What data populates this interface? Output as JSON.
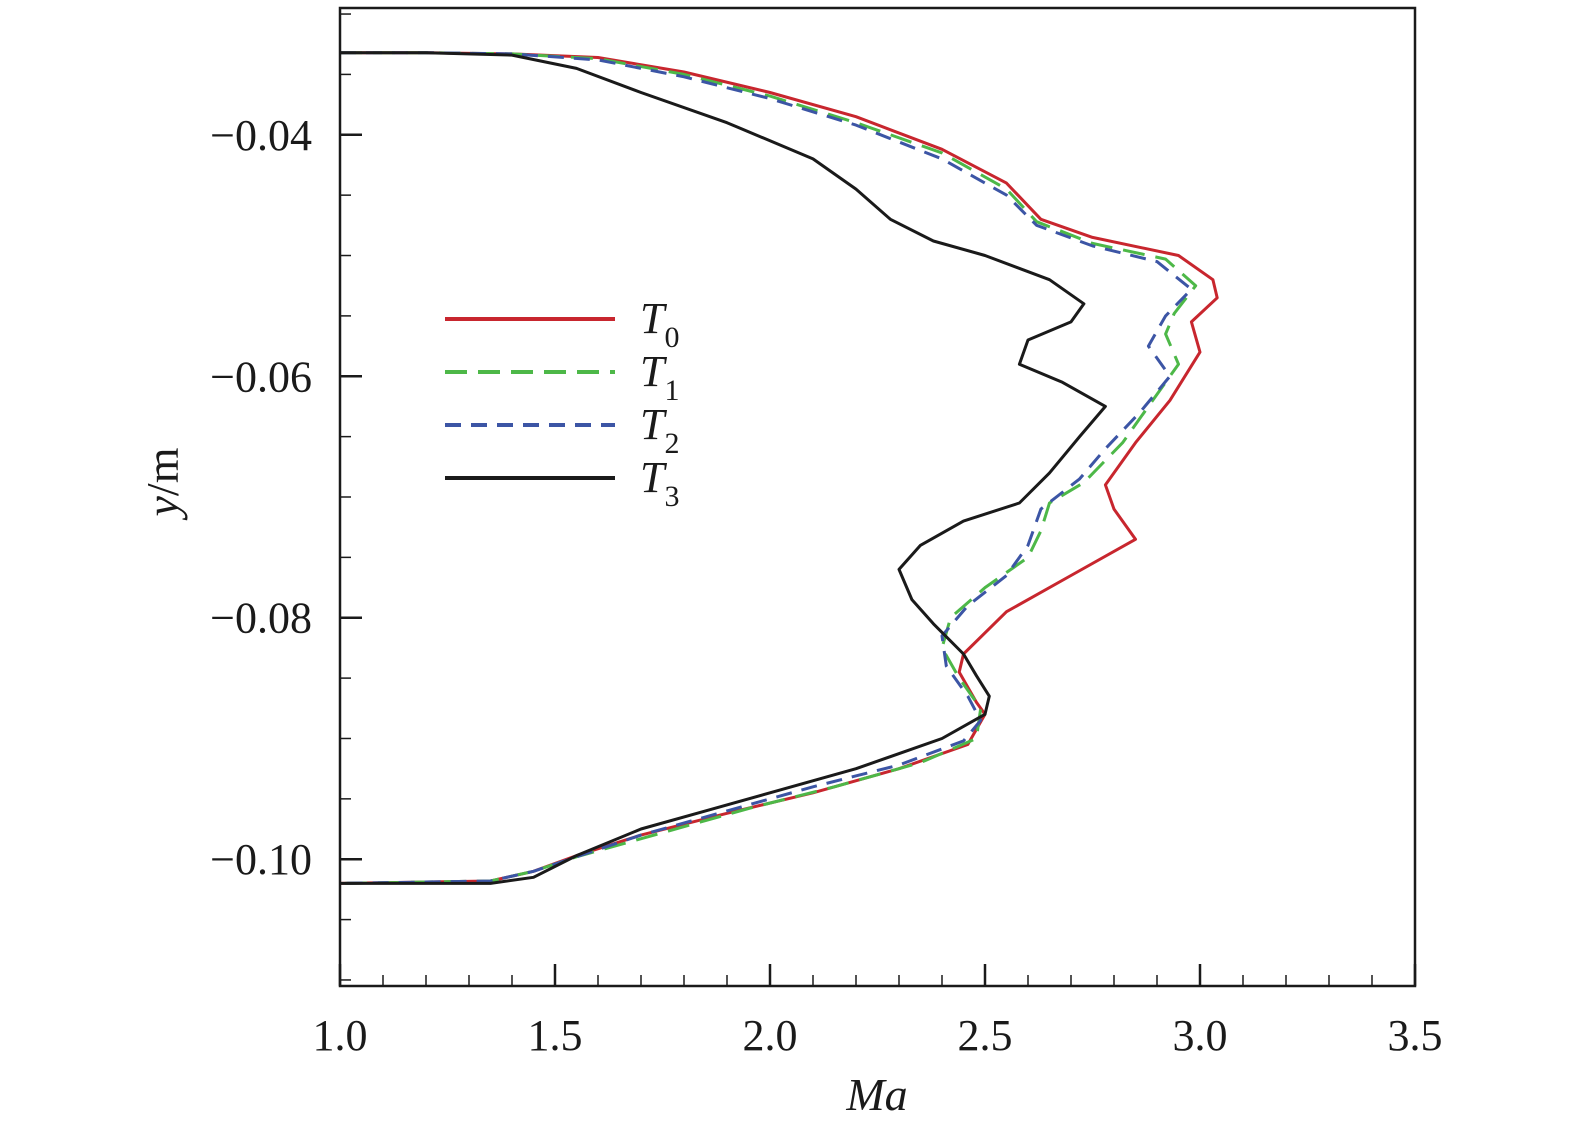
{
  "chart_data": {
    "type": "line",
    "xlabel": "Ma",
    "ylabel_italic": "y",
    "ylabel_unit": "/m",
    "xlim": [
      1.0,
      3.5
    ],
    "ylim": [
      -0.1105,
      -0.0295
    ],
    "x_ticks": [
      1.0,
      1.5,
      2.0,
      2.5,
      3.0,
      3.5
    ],
    "x_tick_labels": [
      "1.0",
      "1.5",
      "2.0",
      "2.5",
      "3.0",
      "3.5"
    ],
    "y_ticks": [
      -0.04,
      -0.06,
      -0.08,
      -0.1
    ],
    "y_tick_labels": [
      "−0.04",
      "−0.06",
      "−0.08",
      "−0.10"
    ],
    "grid": false,
    "legend_position": "left-center",
    "series": [
      {
        "name_base": "T",
        "name_sub": "0",
        "color": "#c8262e",
        "dash": "solid",
        "points": [
          [
            1.0,
            -0.0332
          ],
          [
            1.2,
            -0.0332
          ],
          [
            1.4,
            -0.0333
          ],
          [
            1.6,
            -0.0336
          ],
          [
            1.8,
            -0.0348
          ],
          [
            2.0,
            -0.0365
          ],
          [
            2.2,
            -0.0385
          ],
          [
            2.4,
            -0.0412
          ],
          [
            2.55,
            -0.044
          ],
          [
            2.63,
            -0.047
          ],
          [
            2.75,
            -0.0485
          ],
          [
            2.95,
            -0.05
          ],
          [
            3.03,
            -0.052
          ],
          [
            3.04,
            -0.0535
          ],
          [
            2.98,
            -0.0555
          ],
          [
            3.0,
            -0.058
          ],
          [
            2.93,
            -0.062
          ],
          [
            2.85,
            -0.0655
          ],
          [
            2.78,
            -0.069
          ],
          [
            2.8,
            -0.071
          ],
          [
            2.85,
            -0.0735
          ],
          [
            2.7,
            -0.0765
          ],
          [
            2.55,
            -0.0795
          ],
          [
            2.45,
            -0.083
          ],
          [
            2.44,
            -0.0845
          ],
          [
            2.48,
            -0.087
          ],
          [
            2.5,
            -0.088
          ],
          [
            2.46,
            -0.0905
          ],
          [
            2.3,
            -0.0925
          ],
          [
            2.1,
            -0.0945
          ],
          [
            1.9,
            -0.0962
          ],
          [
            1.7,
            -0.098
          ],
          [
            1.55,
            -0.0997
          ],
          [
            1.45,
            -0.101
          ],
          [
            1.35,
            -0.1018
          ],
          [
            1.0,
            -0.102
          ]
        ]
      },
      {
        "name_base": "T",
        "name_sub": "1",
        "color": "#4db848",
        "dash": "long-dash",
        "points": [
          [
            1.0,
            -0.0332
          ],
          [
            1.2,
            -0.0332
          ],
          [
            1.4,
            -0.0333
          ],
          [
            1.6,
            -0.0337
          ],
          [
            1.8,
            -0.035
          ],
          [
            2.0,
            -0.0368
          ],
          [
            2.2,
            -0.039
          ],
          [
            2.4,
            -0.0415
          ],
          [
            2.55,
            -0.0445
          ],
          [
            2.62,
            -0.0472
          ],
          [
            2.75,
            -0.049
          ],
          [
            2.92,
            -0.0503
          ],
          [
            2.99,
            -0.0525
          ],
          [
            2.94,
            -0.0548
          ],
          [
            2.92,
            -0.0565
          ],
          [
            2.95,
            -0.059
          ],
          [
            2.88,
            -0.0625
          ],
          [
            2.82,
            -0.0655
          ],
          [
            2.73,
            -0.0688
          ],
          [
            2.65,
            -0.0705
          ],
          [
            2.63,
            -0.0728
          ],
          [
            2.6,
            -0.075
          ],
          [
            2.5,
            -0.0775
          ],
          [
            2.42,
            -0.08
          ],
          [
            2.4,
            -0.0825
          ],
          [
            2.44,
            -0.085
          ],
          [
            2.49,
            -0.0875
          ],
          [
            2.48,
            -0.09
          ],
          [
            2.35,
            -0.092
          ],
          [
            2.15,
            -0.094
          ],
          [
            1.95,
            -0.0958
          ],
          [
            1.75,
            -0.0978
          ],
          [
            1.55,
            -0.0998
          ],
          [
            1.45,
            -0.101
          ],
          [
            1.35,
            -0.1018
          ],
          [
            1.0,
            -0.102
          ]
        ]
      },
      {
        "name_base": "T",
        "name_sub": "2",
        "color": "#3c55a5",
        "dash": "short-dash",
        "points": [
          [
            1.0,
            -0.0332
          ],
          [
            1.2,
            -0.0332
          ],
          [
            1.4,
            -0.0333
          ],
          [
            1.6,
            -0.0338
          ],
          [
            1.8,
            -0.0352
          ],
          [
            2.0,
            -0.037
          ],
          [
            2.2,
            -0.0392
          ],
          [
            2.4,
            -0.042
          ],
          [
            2.55,
            -0.045
          ],
          [
            2.62,
            -0.0475
          ],
          [
            2.75,
            -0.0492
          ],
          [
            2.9,
            -0.0505
          ],
          [
            2.98,
            -0.0528
          ],
          [
            2.92,
            -0.055
          ],
          [
            2.88,
            -0.0575
          ],
          [
            2.93,
            -0.06
          ],
          [
            2.86,
            -0.063
          ],
          [
            2.78,
            -0.066
          ],
          [
            2.72,
            -0.0685
          ],
          [
            2.63,
            -0.071
          ],
          [
            2.6,
            -0.074
          ],
          [
            2.55,
            -0.0765
          ],
          [
            2.46,
            -0.079
          ],
          [
            2.4,
            -0.0815
          ],
          [
            2.41,
            -0.084
          ],
          [
            2.46,
            -0.0865
          ],
          [
            2.49,
            -0.0885
          ],
          [
            2.45,
            -0.0902
          ],
          [
            2.3,
            -0.0922
          ],
          [
            2.1,
            -0.094
          ],
          [
            1.9,
            -0.096
          ],
          [
            1.7,
            -0.098
          ],
          [
            1.55,
            -0.0998
          ],
          [
            1.45,
            -0.101
          ],
          [
            1.35,
            -0.1018
          ],
          [
            1.0,
            -0.102
          ]
        ]
      },
      {
        "name_base": "T",
        "name_sub": "3",
        "color": "#1a1a1a",
        "dash": "solid",
        "points": [
          [
            1.0,
            -0.0332
          ],
          [
            1.2,
            -0.0332
          ],
          [
            1.4,
            -0.0334
          ],
          [
            1.55,
            -0.0345
          ],
          [
            1.7,
            -0.0365
          ],
          [
            1.9,
            -0.039
          ],
          [
            2.1,
            -0.042
          ],
          [
            2.2,
            -0.0445
          ],
          [
            2.28,
            -0.047
          ],
          [
            2.38,
            -0.0488
          ],
          [
            2.5,
            -0.05
          ],
          [
            2.65,
            -0.052
          ],
          [
            2.73,
            -0.054
          ],
          [
            2.7,
            -0.0555
          ],
          [
            2.6,
            -0.057
          ],
          [
            2.58,
            -0.059
          ],
          [
            2.68,
            -0.0605
          ],
          [
            2.78,
            -0.0625
          ],
          [
            2.72,
            -0.065
          ],
          [
            2.65,
            -0.068
          ],
          [
            2.58,
            -0.0705
          ],
          [
            2.45,
            -0.072
          ],
          [
            2.35,
            -0.074
          ],
          [
            2.3,
            -0.076
          ],
          [
            2.33,
            -0.0785
          ],
          [
            2.38,
            -0.0805
          ],
          [
            2.45,
            -0.083
          ],
          [
            2.48,
            -0.0848
          ],
          [
            2.51,
            -0.0865
          ],
          [
            2.5,
            -0.088
          ],
          [
            2.4,
            -0.09
          ],
          [
            2.2,
            -0.0925
          ],
          [
            2.0,
            -0.0945
          ],
          [
            1.85,
            -0.096
          ],
          [
            1.7,
            -0.0975
          ],
          [
            1.55,
            -0.0997
          ],
          [
            1.45,
            -0.1015
          ],
          [
            1.35,
            -0.102
          ],
          [
            1.0,
            -0.102
          ]
        ]
      }
    ]
  }
}
